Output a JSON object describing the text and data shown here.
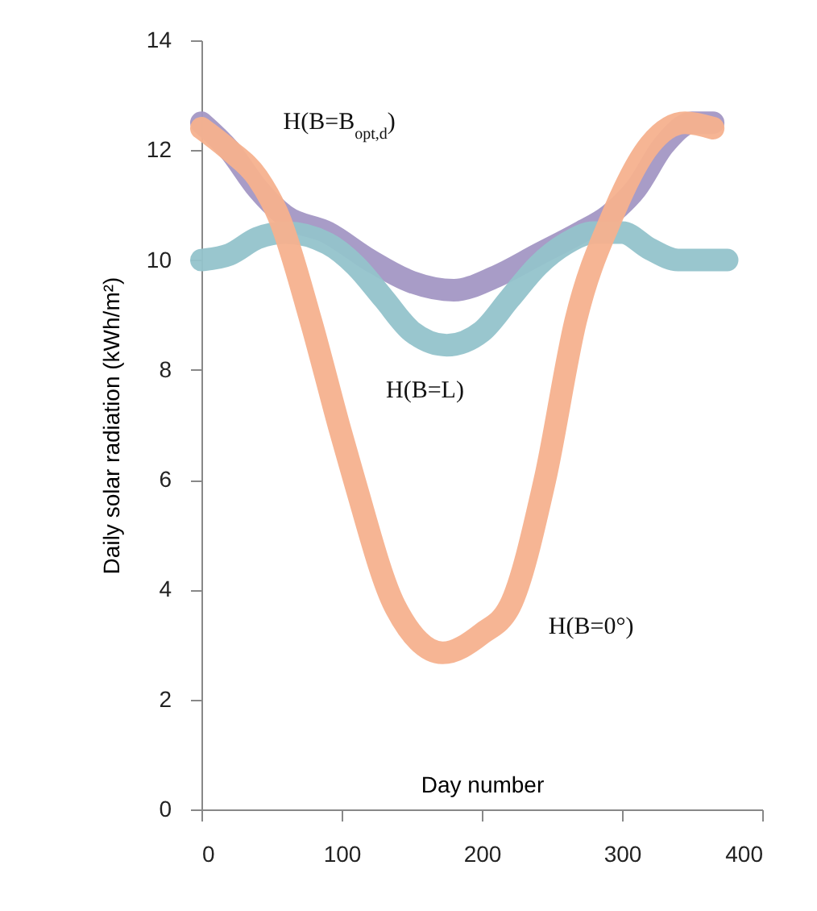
{
  "chart_data": {
    "type": "line",
    "xlabel": "Day number",
    "ylabel": "Daily solar radiation (kWh/m²)",
    "xlim": [
      0,
      400
    ],
    "xticks": [
      0,
      100,
      200,
      300,
      400
    ],
    "ylim": [
      0,
      14
    ],
    "yticks": [
      0,
      2,
      4,
      6,
      8,
      10,
      12,
      14
    ],
    "marker": "none",
    "line_style": "solid",
    "series": [
      {
        "name": "H(B=B$_{opt,d}$)",
        "color": "#a397c4",
        "x": [
          0,
          20,
          40,
          60,
          90,
          120,
          150,
          180,
          210,
          240,
          270,
          290,
          310,
          330,
          350,
          365
        ],
        "values": [
          12.5,
          12.0,
          11.3,
          10.8,
          10.5,
          10.0,
          9.6,
          9.45,
          9.7,
          10.1,
          10.5,
          10.8,
          11.3,
          12.1,
          12.5,
          12.5
        ]
      },
      {
        "name": "H(B=L)",
        "color": "#93c3cb",
        "x": [
          0,
          20,
          40,
          60,
          90,
          110,
          130,
          150,
          175,
          200,
          220,
          240,
          260,
          280,
          300,
          320,
          340,
          375
        ],
        "values": [
          10.0,
          10.1,
          10.4,
          10.5,
          10.3,
          9.9,
          9.3,
          8.7,
          8.45,
          8.7,
          9.3,
          9.9,
          10.3,
          10.5,
          10.5,
          10.2,
          10.0,
          10.0
        ]
      },
      {
        "name": "H(B=0°)",
        "color": "#f5b18e",
        "x": [
          0,
          20,
          40,
          55,
          78,
          99,
          109,
          138,
          172,
          200,
          220,
          245,
          267,
          293,
          320,
          345,
          365
        ],
        "values": [
          12.4,
          12.0,
          11.5,
          10.8,
          8.9,
          6.9,
          6.0,
          3.7,
          2.85,
          3.2,
          3.7,
          6.0,
          8.9,
          10.8,
          12.1,
          12.5,
          12.4
        ]
      }
    ]
  }
}
